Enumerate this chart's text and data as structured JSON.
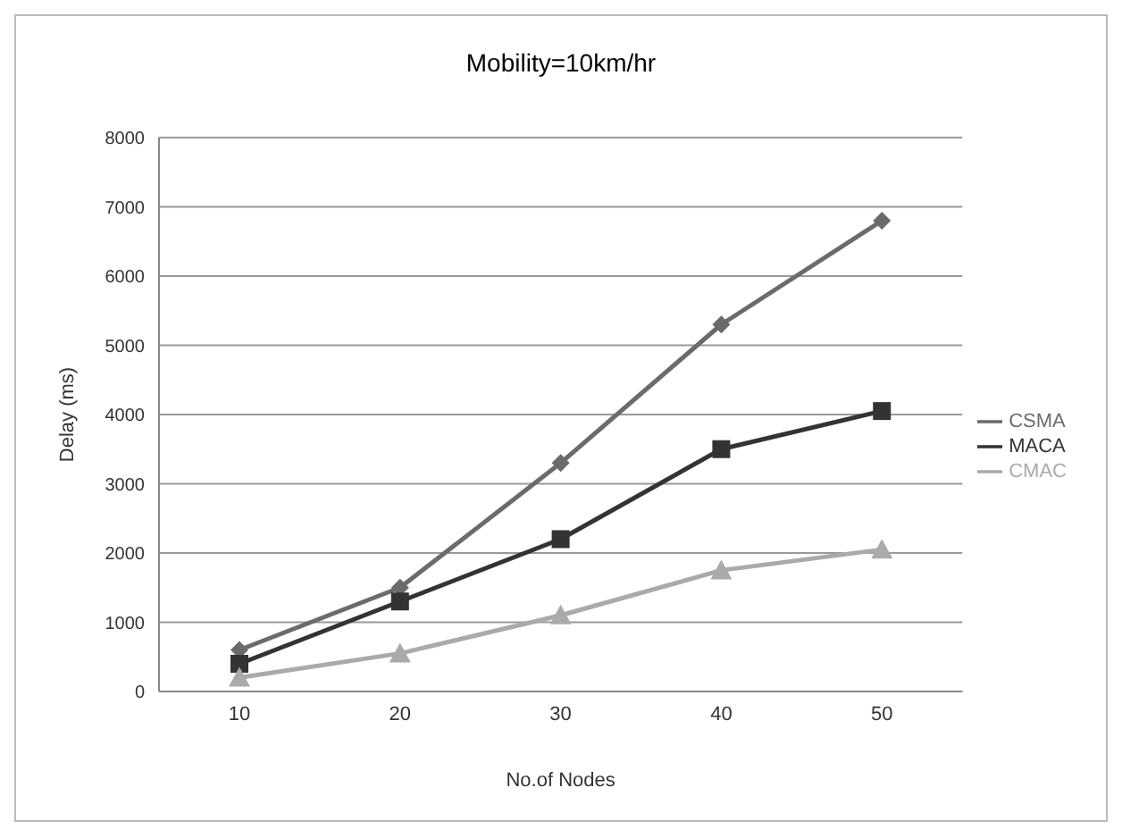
{
  "chart_data": {
    "type": "line",
    "title": "Mobility=10km/hr",
    "xlabel": "No.of Nodes",
    "ylabel": "Delay (ms)",
    "categories": [
      "10",
      "20",
      "30",
      "40",
      "50"
    ],
    "series": [
      {
        "name": "CSMA",
        "color": "#6b6b6b",
        "marker": "diamond",
        "values": [
          600,
          1500,
          3300,
          5300,
          6800
        ]
      },
      {
        "name": "MACA",
        "color": "#333333",
        "marker": "square",
        "values": [
          400,
          1300,
          2200,
          3500,
          4050
        ]
      },
      {
        "name": "CMAC",
        "color": "#aaaaaa",
        "marker": "triangle",
        "values": [
          200,
          550,
          1100,
          1750,
          2050
        ]
      }
    ],
    "ylim": [
      0,
      8000
    ],
    "yticks": [
      0,
      1000,
      2000,
      3000,
      4000,
      5000,
      6000,
      7000,
      8000
    ],
    "grid": "y",
    "legend": "right"
  }
}
